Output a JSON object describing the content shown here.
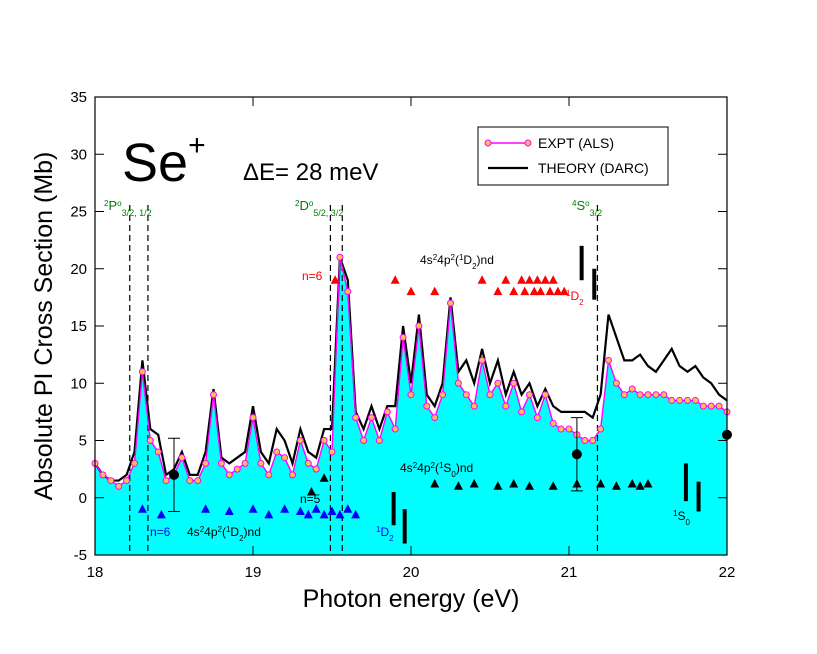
{
  "chart_data": {
    "type": "line",
    "xlabel": "Photon energy (eV)",
    "ylabel": "Absolute PI Cross Section (Mb)",
    "xlim": [
      18,
      22
    ],
    "ylim": [
      -5,
      35
    ],
    "xticks": [
      18,
      19,
      20,
      21,
      22
    ],
    "yticks": [
      -5,
      0,
      5,
      10,
      15,
      20,
      25,
      30,
      35
    ],
    "legend": "upper right",
    "x": [
      18,
      18.05,
      18.1,
      18.15,
      18.2,
      18.25,
      18.3,
      18.35,
      18.4,
      18.45,
      18.5,
      18.55,
      18.6,
      18.65,
      18.7,
      18.75,
      18.8,
      18.85,
      18.9,
      18.95,
      19,
      19.05,
      19.1,
      19.15,
      19.2,
      19.25,
      19.3,
      19.35,
      19.4,
      19.45,
      19.5,
      19.55,
      19.6,
      19.65,
      19.7,
      19.75,
      19.8,
      19.85,
      19.9,
      19.95,
      20,
      20.05,
      20.1,
      20.15,
      20.2,
      20.25,
      20.3,
      20.35,
      20.4,
      20.45,
      20.5,
      20.55,
      20.6,
      20.65,
      20.7,
      20.75,
      20.8,
      20.85,
      20.9,
      20.95,
      21,
      21.05,
      21.1,
      21.15,
      21.2,
      21.25,
      21.3,
      21.35,
      21.4,
      21.45,
      21.5,
      21.55,
      21.6,
      21.65,
      21.7,
      21.75,
      21.8,
      21.85,
      21.9,
      21.95,
      22
    ],
    "series": [
      {
        "name": "EXPT (ALS)",
        "color": "#ff00ff",
        "marker_color": "#ffc04d",
        "fill": "#00ffff",
        "values": [
          3,
          2,
          1.5,
          1,
          1.5,
          3,
          11,
          5,
          4,
          1.5,
          2,
          3.5,
          1.5,
          1.5,
          3,
          9,
          3,
          2,
          2.5,
          3,
          7,
          3,
          2,
          4,
          3.5,
          2,
          5,
          3,
          2.5,
          5,
          4,
          21,
          18,
          7,
          5,
          7,
          5,
          7.5,
          6,
          14,
          9,
          15,
          8,
          7,
          9,
          17,
          10,
          9,
          8,
          12,
          9,
          10,
          8,
          10,
          7.5,
          9,
          7,
          9,
          6.5,
          6,
          6,
          5.5,
          5,
          5,
          6,
          12,
          10,
          9,
          9.5,
          9,
          9,
          9,
          9,
          8.5,
          8.5,
          8.5,
          8.5,
          8,
          8,
          8,
          7.5
        ]
      },
      {
        "name": "THEORY (DARC)",
        "color": "#000000",
        "values": [
          3,
          2,
          1.5,
          1.5,
          2,
          4,
          12,
          6,
          5.5,
          2,
          2.5,
          4,
          2,
          2,
          4,
          9.5,
          3.5,
          3,
          3.5,
          4,
          8,
          4,
          3,
          6,
          5,
          3,
          6,
          4,
          3.5,
          6,
          6,
          21,
          19,
          7.5,
          6,
          8,
          6,
          8,
          8,
          15,
          10,
          16,
          9,
          8,
          10,
          17.5,
          11,
          12,
          10,
          13,
          10,
          12,
          9,
          11,
          9,
          10,
          8,
          9.5,
          8,
          7.5,
          7.5,
          7.5,
          7.5,
          7,
          9,
          16,
          14,
          12,
          12,
          12.5,
          11.5,
          11,
          12,
          13,
          11.5,
          11,
          11.5,
          10.5,
          10,
          9,
          8.5
        ]
      }
    ],
    "thresholds": [
      18.22,
      18.335,
      19.49,
      19.565,
      21.18
    ],
    "threshold_color": "#000000",
    "triangles": [
      {
        "color": "#ff0000",
        "x": [
          19.52,
          19.9,
          20.45,
          20.6,
          20.7,
          20.75,
          20.8,
          20.85,
          20.9,
          20.0,
          20.15,
          20.55,
          20.65,
          20.72,
          20.78,
          20.82,
          20.88,
          20.93,
          20.97
        ],
        "y": [
          19,
          19,
          19,
          19,
          19,
          19,
          19,
          19,
          19,
          18,
          18,
          18,
          18,
          18,
          18,
          18,
          18,
          18,
          18
        ]
      },
      {
        "color": "#000000",
        "x": [
          19.37,
          19.45,
          20.15,
          20.3,
          20.4,
          20.55,
          20.65,
          20.75,
          20.9,
          21.05,
          21.2,
          21.3,
          21.4,
          21.45,
          21.5
        ],
        "y": [
          0.5,
          1.7,
          1.2,
          1,
          1.2,
          1,
          1.2,
          1,
          1,
          1.2,
          1.2,
          1,
          1.2,
          1,
          1.2
        ]
      },
      {
        "color": "#0000ff",
        "x": [
          18.3,
          18.42,
          18.7,
          18.85,
          19,
          19.1,
          19.2,
          19.3,
          19.35,
          19.4,
          19.45,
          19.5,
          19.55,
          19.6,
          19.65
        ],
        "y": [
          -1,
          -1.5,
          -1,
          -1.2,
          -1,
          -1.5,
          -1,
          -1.2,
          -1.5,
          -1,
          -1.5,
          -1.2,
          -1.5,
          -1,
          -1.5
        ]
      }
    ],
    "bars": [
      {
        "x": 19.89,
        "low": -2.4,
        "high": 0.5
      },
      {
        "x": 19.96,
        "low": -4,
        "high": -1
      },
      {
        "x": 21.08,
        "low": 19,
        "high": 22
      },
      {
        "x": 21.16,
        "low": 17.3,
        "high": 20
      },
      {
        "x": 21.74,
        "low": -0.3,
        "high": 3
      },
      {
        "x": 21.82,
        "low": -1.2,
        "high": 1.4
      }
    ],
    "points": [
      {
        "x": 18.5,
        "y": 2,
        "err": 3.2
      },
      {
        "x": 21.05,
        "y": 3.8,
        "err": 3.2
      },
      {
        "x": 22,
        "y": 5.5
      }
    ],
    "annotations": [
      [
        "Se",
        "+"
      ],
      [
        "ΔE= 28 meV"
      ],
      [
        "2",
        "P",
        "o",
        "3/2, 1/2"
      ],
      [
        "2",
        "D",
        "o",
        "5/2, 3/2"
      ],
      [
        "4",
        "S",
        "o",
        "3/2"
      ],
      [
        "4s",
        "2",
        "4p",
        "2",
        "(",
        "1",
        "D",
        "2",
        ")nd"
      ],
      [
        "n=6"
      ],
      [
        "1",
        "D",
        "2"
      ],
      [
        "4s",
        "2",
        "4p",
        "2",
        "(",
        "1",
        "S",
        "0",
        ")nd"
      ],
      [
        "n=5"
      ],
      [
        "n=6"
      ],
      [
        "4s",
        "2",
        "4p",
        "2",
        "(",
        "1",
        "D",
        "2",
        ")nd"
      ],
      [
        "1",
        "D",
        "2"
      ],
      [
        "1",
        "S",
        "0"
      ]
    ]
  }
}
